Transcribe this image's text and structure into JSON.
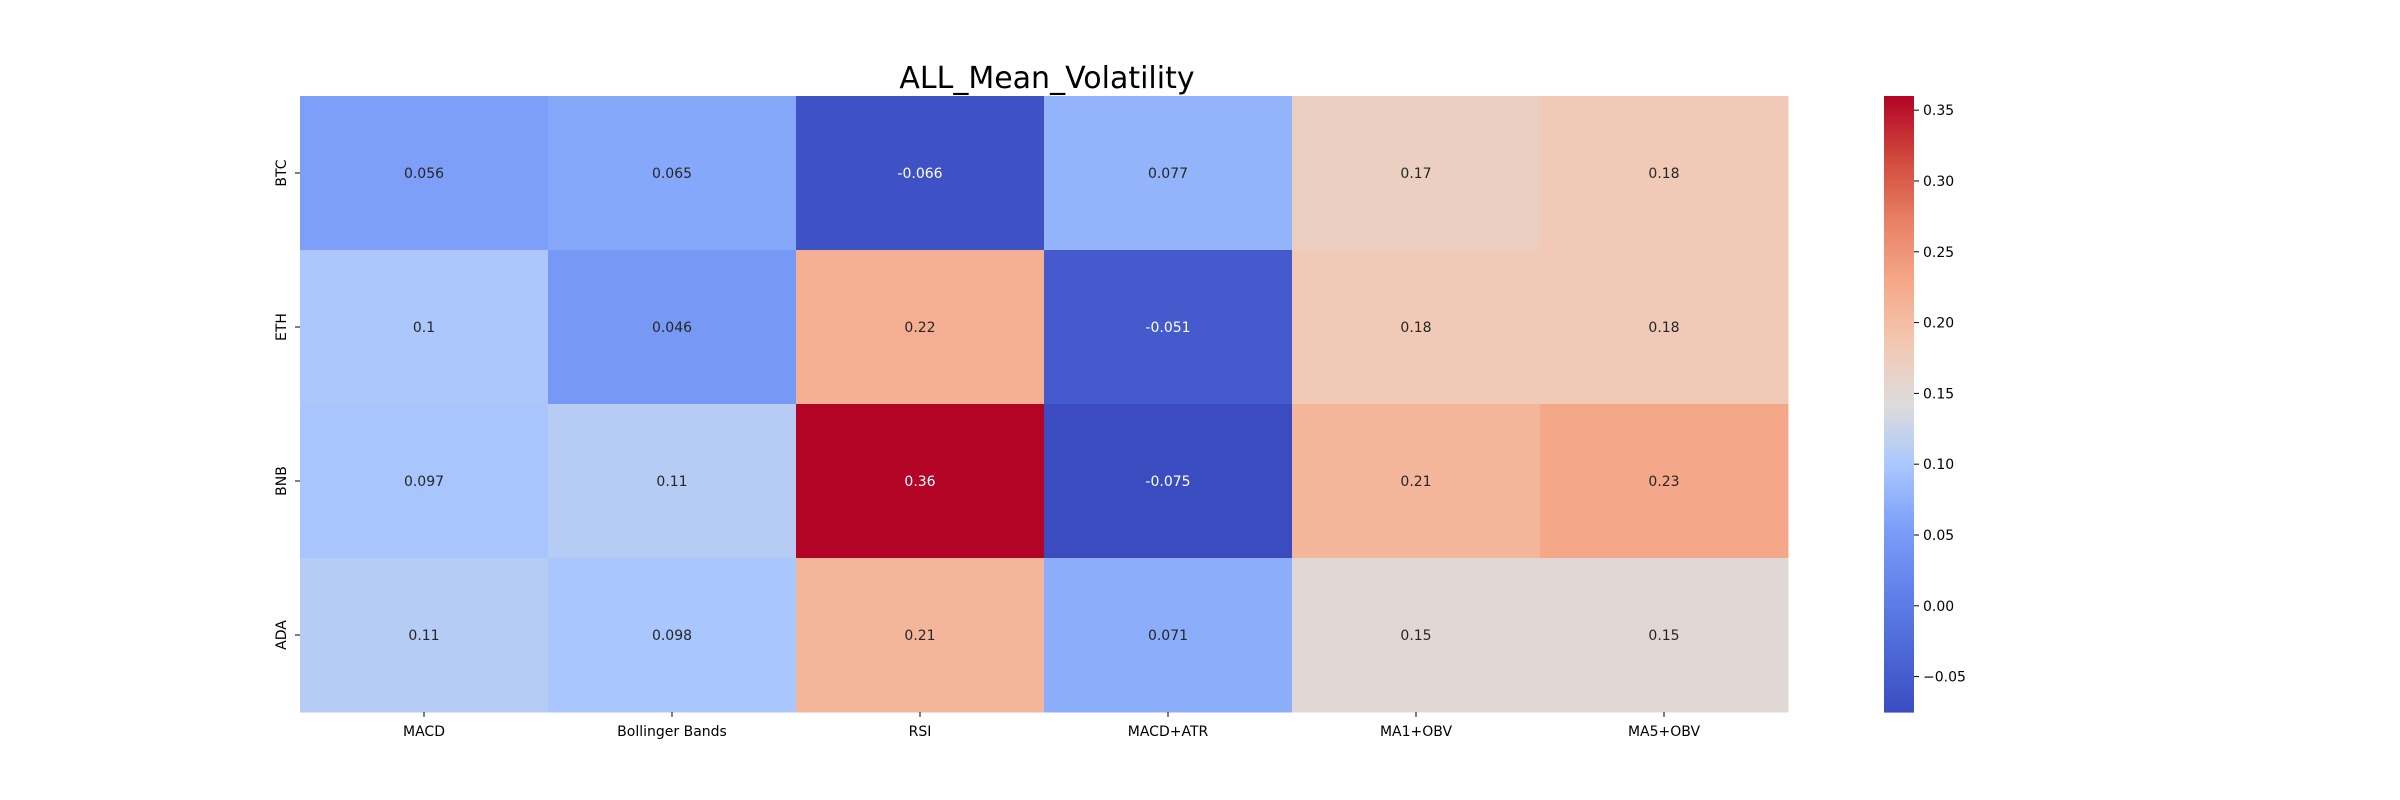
{
  "chart_data": {
    "type": "heatmap",
    "title": "ALL_Mean_Volatility",
    "x_categories": [
      "MACD",
      "Bollinger Bands",
      "RSI",
      "MACD+ATR",
      "MA1+OBV",
      "MA5+OBV"
    ],
    "y_categories": [
      "BTC",
      "ETH",
      "BNB",
      "ADA"
    ],
    "values": [
      [
        0.056,
        0.065,
        -0.066,
        0.077,
        0.17,
        0.18
      ],
      [
        0.1,
        0.046,
        0.22,
        -0.051,
        0.18,
        0.18
      ],
      [
        0.097,
        0.11,
        0.36,
        -0.075,
        0.21,
        0.23
      ],
      [
        0.11,
        0.098,
        0.21,
        0.071,
        0.15,
        0.15
      ]
    ],
    "value_labels": [
      [
        "0.056",
        "0.065",
        "-0.066",
        "0.077",
        "0.17",
        "0.18"
      ],
      [
        "0.1",
        "0.046",
        "0.22",
        "-0.051",
        "0.18",
        "0.18"
      ],
      [
        "0.097",
        "0.11",
        "0.36",
        "-0.075",
        "0.21",
        "0.23"
      ],
      [
        "0.11",
        "0.098",
        "0.21",
        "0.071",
        "0.15",
        "0.15"
      ]
    ],
    "colormap": "coolwarm",
    "vmin": -0.075,
    "vmax": 0.36,
    "colorbar_ticks": [
      -0.05,
      0.0,
      0.05,
      0.1,
      0.15,
      0.2,
      0.25,
      0.3,
      0.35
    ],
    "colorbar_tick_labels": [
      "−0.05",
      "0.00",
      "0.05",
      "0.10",
      "0.15",
      "0.20",
      "0.25",
      "0.30",
      "0.35"
    ]
  }
}
